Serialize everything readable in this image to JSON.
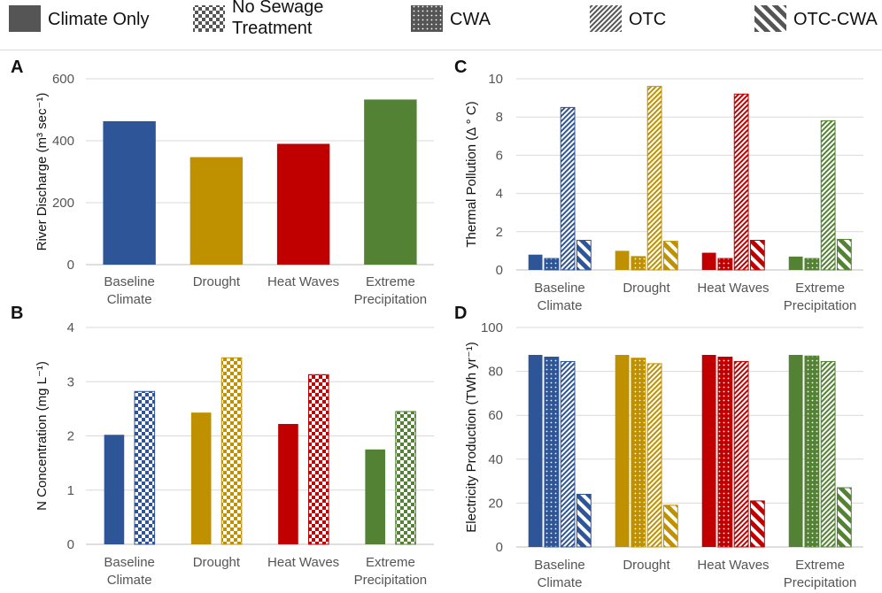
{
  "legend": [
    {
      "label_lines": [
        "Climate Only"
      ],
      "pattern": "solid"
    },
    {
      "label_lines": [
        "No Sewage",
        "Treatment"
      ],
      "pattern": "checker"
    },
    {
      "label_lines": [
        "CWA"
      ],
      "pattern": "dots"
    },
    {
      "label_lines": [
        "OTC"
      ],
      "pattern": "stripes-thin"
    },
    {
      "label_lines": [
        "OTC-CWA"
      ],
      "pattern": "stripes-wide"
    }
  ],
  "colors": {
    "Baseline": "#2e5597",
    "Drought": "#bf9000",
    "Heat": "#c00000",
    "Extreme": "#548235",
    "gridline": "#d9d9d9",
    "axis": "#bfbfbf"
  },
  "chart_data": [
    {
      "id": "A",
      "panel_label": "A",
      "type": "bar",
      "ylabel": "River Discharge (m³ sec⁻¹)",
      "ylim": [
        0,
        600
      ],
      "yticks": [
        0,
        200,
        400,
        600
      ],
      "categories": [
        [
          "Baseline",
          "Climate"
        ],
        [
          "Drought"
        ],
        [
          "Heat Waves"
        ],
        [
          "Extreme",
          "Precipitation"
        ]
      ],
      "series": [
        {
          "name": "Climate Only",
          "pattern": "solid",
          "values": [
            463,
            347,
            390,
            533
          ]
        }
      ]
    },
    {
      "id": "B",
      "panel_label": "B",
      "type": "bar",
      "ylabel": "N Concentration (mg L⁻¹)",
      "ylim": [
        0,
        4
      ],
      "yticks": [
        0,
        1,
        2,
        3,
        4
      ],
      "categories": [
        [
          "Baseline",
          "Climate"
        ],
        [
          "Drought"
        ],
        [
          "Heat Waves"
        ],
        [
          "Extreme",
          "Precipitation"
        ]
      ],
      "series": [
        {
          "name": "Climate Only",
          "pattern": "solid",
          "values": [
            2.02,
            2.43,
            2.22,
            1.75
          ]
        },
        {
          "name": "No Sewage Treatment",
          "pattern": "checker",
          "values": [
            2.82,
            3.44,
            3.13,
            2.45
          ]
        }
      ]
    },
    {
      "id": "C",
      "panel_label": "C",
      "type": "bar",
      "ylabel": "Thermal Pollution (Δ ° C)",
      "ylim": [
        0,
        10
      ],
      "yticks": [
        0,
        2,
        4,
        6,
        8,
        10
      ],
      "categories": [
        [
          "Baseline",
          "Climate"
        ],
        [
          "Drought"
        ],
        [
          "Heat Waves"
        ],
        [
          "Extreme",
          "Precipitation"
        ]
      ],
      "series": [
        {
          "name": "Climate Only",
          "pattern": "solid",
          "values": [
            0.8,
            1.0,
            0.9,
            0.7
          ]
        },
        {
          "name": "CWA",
          "pattern": "dots",
          "values": [
            0.6,
            0.7,
            0.6,
            0.6
          ]
        },
        {
          "name": "OTC",
          "pattern": "stripes-thin",
          "values": [
            8.5,
            9.6,
            9.2,
            7.8
          ]
        },
        {
          "name": "OTC-CWA",
          "pattern": "stripes-wide",
          "values": [
            1.55,
            1.5,
            1.55,
            1.6
          ]
        }
      ]
    },
    {
      "id": "D",
      "panel_label": "D",
      "type": "bar",
      "ylabel": "Electricity Production (TWh yr⁻¹)",
      "ylim": [
        0,
        100
      ],
      "yticks": [
        0,
        20,
        40,
        60,
        80,
        100
      ],
      "categories": [
        [
          "Baseline",
          "Climate"
        ],
        [
          "Drought"
        ],
        [
          "Heat Waves"
        ],
        [
          "Extreme",
          "Precipitation"
        ]
      ],
      "series": [
        {
          "name": "Climate Only",
          "pattern": "solid",
          "values": [
            87.5,
            87.5,
            87.5,
            87.5
          ]
        },
        {
          "name": "CWA",
          "pattern": "dots",
          "values": [
            86.5,
            86,
            86.5,
            87
          ]
        },
        {
          "name": "OTC",
          "pattern": "stripes-thin",
          "values": [
            84.5,
            83.5,
            84.5,
            84.5
          ]
        },
        {
          "name": "OTC-CWA",
          "pattern": "stripes-wide",
          "values": [
            24,
            19,
            21,
            27
          ]
        }
      ]
    }
  ]
}
